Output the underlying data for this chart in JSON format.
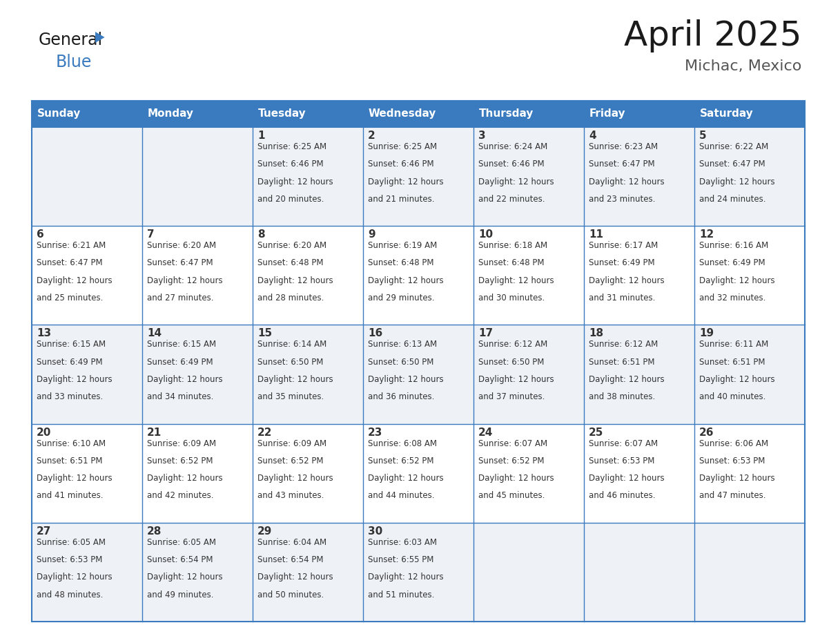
{
  "title": "April 2025",
  "subtitle": "Michac, Mexico",
  "header_bg": "#3a7abf",
  "header_text": "#ffffff",
  "cell_bg_odd": "#eef2f7",
  "cell_bg_even": "#ffffff",
  "border_color": "#3a7abf",
  "text_color": "#333333",
  "days_of_week": [
    "Sunday",
    "Monday",
    "Tuesday",
    "Wednesday",
    "Thursday",
    "Friday",
    "Saturday"
  ],
  "weeks": [
    [
      {
        "day": "",
        "sunrise": "",
        "sunset": "",
        "daylight": ""
      },
      {
        "day": "",
        "sunrise": "",
        "sunset": "",
        "daylight": ""
      },
      {
        "day": "1",
        "sunrise": "6:25 AM",
        "sunset": "6:46 PM",
        "daylight": "12 hours and 20 minutes."
      },
      {
        "day": "2",
        "sunrise": "6:25 AM",
        "sunset": "6:46 PM",
        "daylight": "12 hours and 21 minutes."
      },
      {
        "day": "3",
        "sunrise": "6:24 AM",
        "sunset": "6:46 PM",
        "daylight": "12 hours and 22 minutes."
      },
      {
        "day": "4",
        "sunrise": "6:23 AM",
        "sunset": "6:47 PM",
        "daylight": "12 hours and 23 minutes."
      },
      {
        "day": "5",
        "sunrise": "6:22 AM",
        "sunset": "6:47 PM",
        "daylight": "12 hours and 24 minutes."
      }
    ],
    [
      {
        "day": "6",
        "sunrise": "6:21 AM",
        "sunset": "6:47 PM",
        "daylight": "12 hours and 25 minutes."
      },
      {
        "day": "7",
        "sunrise": "6:20 AM",
        "sunset": "6:47 PM",
        "daylight": "12 hours and 27 minutes."
      },
      {
        "day": "8",
        "sunrise": "6:20 AM",
        "sunset": "6:48 PM",
        "daylight": "12 hours and 28 minutes."
      },
      {
        "day": "9",
        "sunrise": "6:19 AM",
        "sunset": "6:48 PM",
        "daylight": "12 hours and 29 minutes."
      },
      {
        "day": "10",
        "sunrise": "6:18 AM",
        "sunset": "6:48 PM",
        "daylight": "12 hours and 30 minutes."
      },
      {
        "day": "11",
        "sunrise": "6:17 AM",
        "sunset": "6:49 PM",
        "daylight": "12 hours and 31 minutes."
      },
      {
        "day": "12",
        "sunrise": "6:16 AM",
        "sunset": "6:49 PM",
        "daylight": "12 hours and 32 minutes."
      }
    ],
    [
      {
        "day": "13",
        "sunrise": "6:15 AM",
        "sunset": "6:49 PM",
        "daylight": "12 hours and 33 minutes."
      },
      {
        "day": "14",
        "sunrise": "6:15 AM",
        "sunset": "6:49 PM",
        "daylight": "12 hours and 34 minutes."
      },
      {
        "day": "15",
        "sunrise": "6:14 AM",
        "sunset": "6:50 PM",
        "daylight": "12 hours and 35 minutes."
      },
      {
        "day": "16",
        "sunrise": "6:13 AM",
        "sunset": "6:50 PM",
        "daylight": "12 hours and 36 minutes."
      },
      {
        "day": "17",
        "sunrise": "6:12 AM",
        "sunset": "6:50 PM",
        "daylight": "12 hours and 37 minutes."
      },
      {
        "day": "18",
        "sunrise": "6:12 AM",
        "sunset": "6:51 PM",
        "daylight": "12 hours and 38 minutes."
      },
      {
        "day": "19",
        "sunrise": "6:11 AM",
        "sunset": "6:51 PM",
        "daylight": "12 hours and 40 minutes."
      }
    ],
    [
      {
        "day": "20",
        "sunrise": "6:10 AM",
        "sunset": "6:51 PM",
        "daylight": "12 hours and 41 minutes."
      },
      {
        "day": "21",
        "sunrise": "6:09 AM",
        "sunset": "6:52 PM",
        "daylight": "12 hours and 42 minutes."
      },
      {
        "day": "22",
        "sunrise": "6:09 AM",
        "sunset": "6:52 PM",
        "daylight": "12 hours and 43 minutes."
      },
      {
        "day": "23",
        "sunrise": "6:08 AM",
        "sunset": "6:52 PM",
        "daylight": "12 hours and 44 minutes."
      },
      {
        "day": "24",
        "sunrise": "6:07 AM",
        "sunset": "6:52 PM",
        "daylight": "12 hours and 45 minutes."
      },
      {
        "day": "25",
        "sunrise": "6:07 AM",
        "sunset": "6:53 PM",
        "daylight": "12 hours and 46 minutes."
      },
      {
        "day": "26",
        "sunrise": "6:06 AM",
        "sunset": "6:53 PM",
        "daylight": "12 hours and 47 minutes."
      }
    ],
    [
      {
        "day": "27",
        "sunrise": "6:05 AM",
        "sunset": "6:53 PM",
        "daylight": "12 hours and 48 minutes."
      },
      {
        "day": "28",
        "sunrise": "6:05 AM",
        "sunset": "6:54 PM",
        "daylight": "12 hours and 49 minutes."
      },
      {
        "day": "29",
        "sunrise": "6:04 AM",
        "sunset": "6:54 PM",
        "daylight": "12 hours and 50 minutes."
      },
      {
        "day": "30",
        "sunrise": "6:03 AM",
        "sunset": "6:55 PM",
        "daylight": "12 hours and 51 minutes."
      },
      {
        "day": "",
        "sunrise": "",
        "sunset": "",
        "daylight": ""
      },
      {
        "day": "",
        "sunrise": "",
        "sunset": "",
        "daylight": ""
      },
      {
        "day": "",
        "sunrise": "",
        "sunset": "",
        "daylight": ""
      }
    ]
  ],
  "logo_general_color": "#1a1a1a",
  "logo_blue_color": "#3a7abf",
  "figsize": [
    11.88,
    9.18
  ],
  "dpi": 100
}
